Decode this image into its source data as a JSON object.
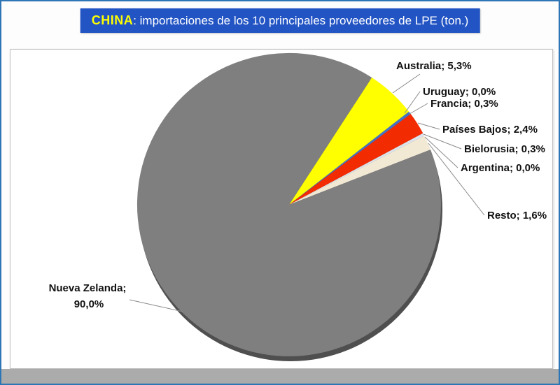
{
  "banner": {
    "highlight": "CHINA",
    "title_rest": ": importaciones de los 10 principales proveedores de LPE (ton.)"
  },
  "colors": {
    "banner_bg": "#2254C4",
    "banner_highlight_text": "#FFFF00",
    "banner_text": "#FFFFFF",
    "page_border": "#2E75B6",
    "bottom_strip": "#ABABAB",
    "pie_shadow": "#4F4F4F"
  },
  "chart_data": {
    "type": "pie",
    "title": "CHINA: importaciones de los 10 principales proveedores de LPE (ton.)",
    "units": "ton.",
    "rotation": "clockwise",
    "start_angle_deg": 33,
    "legend_position": "none",
    "slices": [
      {
        "name": "Australia",
        "value_pct": 5.3,
        "label": "Australia; 5,3%",
        "color": "#FFFF00"
      },
      {
        "name": "Uruguay",
        "value_pct": 0.0,
        "label": "Uruguay; 0,0%",
        "color": "#9DC3E6"
      },
      {
        "name": "Francia",
        "value_pct": 0.3,
        "label": "Francia; 0,3%",
        "color": "#4472C4"
      },
      {
        "name": "Países Bajos",
        "value_pct": 2.4,
        "label": "Países Bajos; 2,4%",
        "color": "#F32B00"
      },
      {
        "name": "Bielorusia",
        "value_pct": 0.3,
        "label": "Bielorusia; 0,3%",
        "color": "#DDE3EC"
      },
      {
        "name": "Argentina",
        "value_pct": 0.0,
        "label": "Argentina; 0,0%",
        "color": "#70AD47"
      },
      {
        "name": "Resto",
        "value_pct": 1.6,
        "label": "Resto; 1,6%",
        "color": "#F2E9D5"
      },
      {
        "name": "Nueva Zelanda",
        "value_pct": 90.0,
        "label": "Nueva Zelanda; 90,0%",
        "label_line1": "Nueva Zelanda;",
        "label_line2": "90,0%",
        "color": "#7F7F7F"
      }
    ]
  }
}
